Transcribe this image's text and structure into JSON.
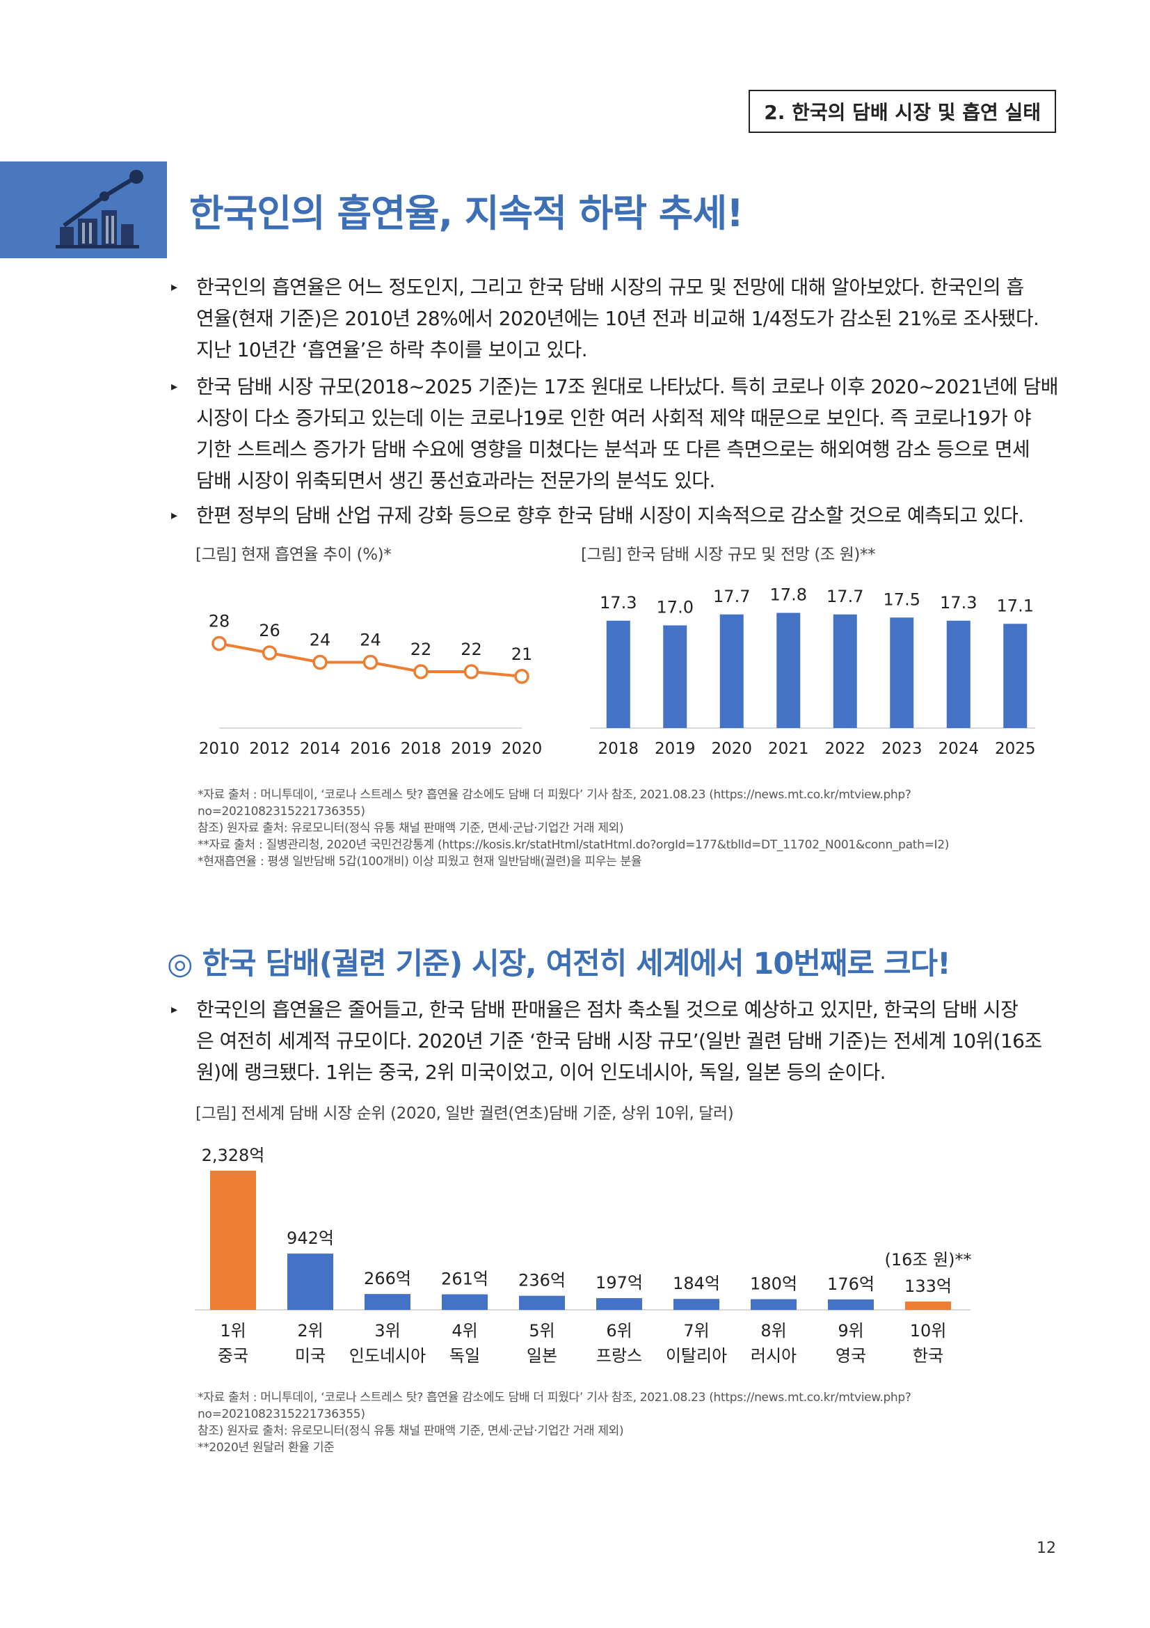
{
  "header": {
    "section_tag": "2. 한국의 담배 시장 및 흡연 실태"
  },
  "main_title": "한국인의 흡연율, 지속적 하락 추세!",
  "bullets_top": [
    {
      "lines": [
        "한국인의 흡연율은 어느 정도인지, 그리고 한국 담배 시장의 규모 및 전망에 대해 알아보았다. 한국인의 흡",
        "연율(현재 기준)은 2010년 28%에서 2020년에는 10년 전과 비교해 1/4정도가 감소된 21%로 조사됐다.",
        "지난 10년간 ‘흡연율’은 하락 추이를 보이고 있다."
      ]
    },
    {
      "lines": [
        "한국 담배 시장 규모(2018~2025 기준)는 17조 원대로 나타났다. 특히 코로나 이후 2020~2021년에 담배",
        "시장이 다소 증가되고 있는데 이는 코로나19로 인한 여러 사회적 제약 때문으로 보인다. 즉 코로나19가 야",
        "기한 스트레스 증가가 담배 수요에 영향을 미쳤다는 분석과 또 다른 측면으로는 해외여행 감소 등으로 면세",
        "담배 시장이 위축되면서 생긴 풍선효과라는 전문가의 분석도 있다."
      ]
    },
    {
      "lines": [
        "한편 정부의 담배 산업 규제 강화 등으로 향후 한국 담배 시장이 지속적으로 감소할 것으로 예측되고 있다."
      ]
    }
  ],
  "chart_data": [
    {
      "type": "line",
      "caption": "[그림] 현재 흡연율 추이 (%)*",
      "categories": [
        "2010",
        "2012",
        "2014",
        "2016",
        "2018",
        "2019",
        "2020"
      ],
      "values": [
        28,
        26,
        24,
        24,
        22,
        22,
        21
      ],
      "ylim": [
        0,
        30
      ],
      "color": "#ed7d31"
    },
    {
      "type": "bar",
      "caption": "[그림] 한국 담배 시장 규모 및 전망 (조 원)**",
      "categories": [
        "2018",
        "2019",
        "2020",
        "2021",
        "2022",
        "2023",
        "2024",
        "2025"
      ],
      "values": [
        17.3,
        17.0,
        17.7,
        17.8,
        17.7,
        17.5,
        17.3,
        17.1
      ],
      "labels": [
        "17.3",
        "17.0",
        "17.7",
        "17.8",
        "17.7",
        "17.5",
        "17.3",
        "17.1"
      ],
      "ylim": [
        0,
        20
      ],
      "color": "#4472c4"
    },
    {
      "type": "bar",
      "caption": "[그림] 전세계 담배 시장 순위 (2020, 일반 궐련(연초)담배 기준, 상위 10위, 달러)",
      "ranks": [
        "1위",
        "2위",
        "3위",
        "4위",
        "5위",
        "6위",
        "7위",
        "8위",
        "9위",
        "10위"
      ],
      "categories": [
        "중국",
        "미국",
        "인도네시아",
        "독일",
        "일본",
        "프랑스",
        "이탈리아",
        "러시아",
        "영국",
        "한국"
      ],
      "values": [
        2328,
        942,
        266,
        261,
        236,
        197,
        184,
        180,
        176,
        133
      ],
      "labels": [
        "2,328억",
        "942억",
        "266억",
        "261억",
        "236억",
        "197억",
        "184억",
        "180억",
        "176억",
        "133억"
      ],
      "extra_label": "(16조 원)**",
      "colors": [
        "#ed7d31",
        "#4472c4",
        "#4472c4",
        "#4472c4",
        "#4472c4",
        "#4472c4",
        "#4472c4",
        "#4472c4",
        "#4472c4",
        "#ed7d31"
      ],
      "ylim": [
        0,
        2328
      ]
    }
  ],
  "notes_top": [
    "*자료 출처 : 머니투데이, ‘코로나 스트레스 탓? 흡연율 감소에도 담배 더 피웠다’ 기사 참조, 2021.08.23 (https://news.mt.co.kr/mtview.php?",
    "no=2021082315221736355)",
    "참조) 원자료 출처: 유로모니터(정식 유통 채널 판매액 기준, 면세·군납·기업간 거래 제외)",
    "**자료 출처 : 질병관리청, 2020년 국민건강통계 (https://kosis.kr/statHtml/statHtml.do?orgId=177&tblId=DT_11702_N001&conn_path=I2)",
    "*현재흡연율 : 평생 일반담배 5갑(100개비) 이상 피웠고 현재 일반담배(궐련)을 피우는 분율"
  ],
  "sub_title": "◎ 한국 담배(궐련 기준) 시장, 여전히 세계에서 10번째로 크다!",
  "bullets_bottom": [
    {
      "lines": [
        "한국인의 흡연율은 줄어들고, 한국 담배 판매율은 점차 축소될 것으로 예상하고 있지만, 한국의 담배 시장",
        "은 여전히 세계적 규모이다. 2020년 기준 ‘한국 담배 시장 규모’(일반 궐련 담배 기준)는 전세계 10위(16조",
        "원)에 랭크됐다. 1위는 중국, 2위 미국이었고, 이어 인도네시아, 독일, 일본 등의 순이다."
      ]
    }
  ],
  "notes_bottom": [
    "*자료 출처 : 머니투데이, ‘코로나 스트레스 탓? 흡연율 감소에도 담배 더 피웠다’ 기사 참조, 2021.08.23 (https://news.mt.co.kr/mtview.php?",
    "no=2021082315221736355)",
    "참조) 원자료 출처: 유로모니터(정식 유통 채널 판매액 기준, 면세·군납·기업간 거래 제외)",
    "**2020년 원달러 환율 기준"
  ],
  "page_number": "12"
}
